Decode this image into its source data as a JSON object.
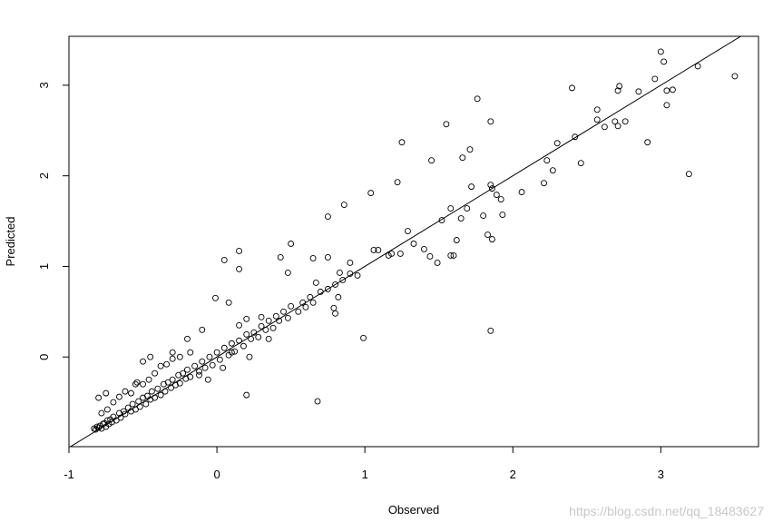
{
  "chart_data": {
    "type": "scatter",
    "x_label": "Observed",
    "y_label": "Predicted",
    "watermark": "https://blog.csdn.net/qq_18483627",
    "xlim": [
      -1,
      3.66
    ],
    "ylim": [
      -0.99,
      3.54
    ],
    "xticks": [
      -1,
      0,
      1,
      2,
      3
    ],
    "yticks": [
      0,
      1,
      2,
      3
    ],
    "abline": {
      "intercept": 0,
      "slope": 1
    },
    "color": "#000000",
    "x": [
      3.5,
      3.0,
      3.02,
      3.19,
      3.25,
      3.08,
      3.04,
      3.04,
      2.96,
      2.91,
      2.85,
      2.71,
      2.72,
      2.76,
      2.69,
      2.71,
      2.62,
      2.57,
      2.57,
      2.4,
      2.42,
      2.46,
      2.3,
      2.23,
      2.27,
      2.21,
      2.06,
      1.76,
      1.55,
      1.71,
      1.66,
      1.85,
      1.25,
      1.45,
      1.85,
      1.86,
      1.89,
      1.92,
      1.72,
      1.93,
      1.8,
      1.69,
      1.58,
      1.65,
      1.52,
      1.62,
      1.6,
      1.58,
      1.83,
      1.86,
      1.85,
      1.22,
      1.04,
      1.29,
      1.33,
      1.4,
      1.44,
      1.49,
      1.18,
      1.16,
      1.24,
      1.06,
      1.09,
      0.86,
      0.75,
      0.99,
      0.68,
      0.15,
      0.05,
      0.15,
      -0.01,
      0.08,
      0.5,
      0.43,
      0.48,
      0.65,
      0.67,
      0.75,
      0.83,
      0.9,
      0.82,
      0.79,
      0.8,
      0.2,
      -0.83,
      -0.82,
      -0.81,
      -0.8,
      -0.79,
      -0.78,
      -0.77,
      -0.76,
      -0.75,
      -0.74,
      -0.73,
      -0.72,
      -0.71,
      -0.7,
      -0.68,
      -0.66,
      -0.65,
      -0.63,
      -0.62,
      -0.6,
      -0.58,
      -0.57,
      -0.55,
      -0.53,
      -0.52,
      -0.5,
      -0.48,
      -0.47,
      -0.45,
      -0.44,
      -0.42,
      -0.4,
      -0.38,
      -0.36,
      -0.35,
      -0.33,
      -0.31,
      -0.3,
      -0.28,
      -0.26,
      -0.25,
      -0.23,
      -0.21,
      -0.2,
      -0.18,
      -0.15,
      -0.12,
      -0.1,
      -0.08,
      -0.05,
      -0.03,
      0.0,
      0.02,
      0.05,
      0.08,
      0.1,
      0.12,
      0.15,
      0.18,
      0.2,
      0.23,
      0.25,
      0.28,
      0.3,
      0.33,
      0.35,
      0.38,
      0.4,
      0.42,
      0.45,
      0.48,
      0.5,
      0.55,
      0.58,
      0.6,
      0.63,
      0.65,
      0.7,
      0.75,
      0.8,
      0.85,
      0.9,
      0.95,
      -0.8,
      -0.75,
      -0.55,
      -0.45,
      -0.5,
      -0.3,
      -0.2,
      -0.1,
      0.15,
      0.2,
      0.3,
      -0.78,
      -0.74,
      -0.7,
      -0.66,
      -0.62,
      -0.58,
      -0.54,
      -0.5,
      -0.46,
      -0.42,
      -0.38,
      -0.34,
      -0.3,
      -0.25,
      -0.18,
      -0.12,
      -0.06,
      0.04,
      0.1,
      0.22,
      0.35
    ],
    "values": [
      3.1,
      3.37,
      3.26,
      2.02,
      3.21,
      2.95,
      2.94,
      2.78,
      3.07,
      2.37,
      2.93,
      2.94,
      2.99,
      2.6,
      2.6,
      2.55,
      2.54,
      2.73,
      2.62,
      2.97,
      2.43,
      2.14,
      2.36,
      2.17,
      2.06,
      1.92,
      1.82,
      2.85,
      2.57,
      2.29,
      2.2,
      2.6,
      2.37,
      2.17,
      1.9,
      1.86,
      1.79,
      1.74,
      1.88,
      1.57,
      1.56,
      1.64,
      1.64,
      1.53,
      1.51,
      1.29,
      1.12,
      1.12,
      1.35,
      1.3,
      0.29,
      1.93,
      1.81,
      1.39,
      1.25,
      1.19,
      1.11,
      1.04,
      1.14,
      1.12,
      1.14,
      1.18,
      1.18,
      1.68,
      1.55,
      0.21,
      -0.49,
      1.17,
      1.07,
      0.97,
      0.65,
      0.6,
      1.25,
      1.1,
      0.93,
      1.09,
      0.82,
      1.1,
      0.93,
      1.04,
      0.66,
      0.54,
      0.48,
      -0.42,
      -0.79,
      -0.8,
      -0.77,
      -0.78,
      -0.76,
      -0.79,
      -0.74,
      -0.73,
      -0.77,
      -0.7,
      -0.74,
      -0.69,
      -0.72,
      -0.66,
      -0.7,
      -0.62,
      -0.67,
      -0.6,
      -0.63,
      -0.56,
      -0.6,
      -0.52,
      -0.58,
      -0.49,
      -0.55,
      -0.45,
      -0.52,
      -0.43,
      -0.47,
      -0.38,
      -0.45,
      -0.35,
      -0.42,
      -0.3,
      -0.38,
      -0.28,
      -0.34,
      -0.25,
      -0.31,
      -0.2,
      -0.29,
      -0.18,
      -0.24,
      -0.14,
      -0.22,
      -0.1,
      -0.16,
      -0.05,
      -0.12,
      0.0,
      -0.09,
      0.05,
      -0.03,
      0.1,
      0.02,
      0.15,
      0.06,
      0.18,
      0.12,
      0.25,
      0.2,
      0.27,
      0.22,
      0.34,
      0.3,
      0.4,
      0.32,
      0.45,
      0.4,
      0.5,
      0.43,
      0.56,
      0.5,
      0.6,
      0.55,
      0.66,
      0.6,
      0.72,
      0.75,
      0.8,
      0.85,
      0.92,
      0.9,
      -0.45,
      -0.4,
      -0.3,
      0.0,
      -0.05,
      0.05,
      0.2,
      0.3,
      0.35,
      0.42,
      0.44,
      -0.62,
      -0.58,
      -0.5,
      -0.44,
      -0.38,
      -0.4,
      -0.28,
      -0.3,
      -0.25,
      -0.18,
      -0.1,
      -0.08,
      -0.02,
      0.0,
      0.05,
      -0.2,
      -0.25,
      -0.12,
      0.05,
      0.0,
      0.2
    ]
  }
}
